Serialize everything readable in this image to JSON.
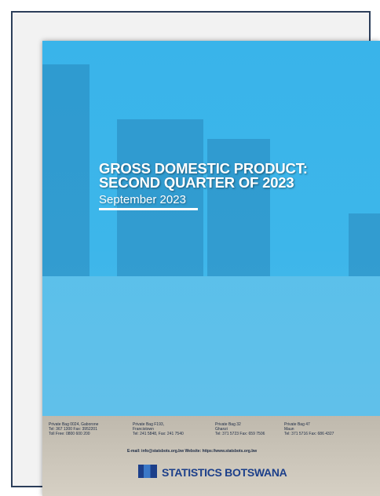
{
  "cover": {
    "title_lines": [
      "GROSS DOMESTIC PRODUCT:",
      "SECOND QUARTER OF 2023"
    ],
    "subtitle": "September 2023",
    "offices": [
      [
        "Private Bag 0024, Gaborone",
        "Tel: 367 1300 Fax: 3952201",
        "Toll Free: 0800 600 200"
      ],
      [
        "Private Bag F193,",
        "Francistown",
        "Tel: 241 5848, Fax: 241 7540"
      ],
      [
        "Private Bag 32",
        "Ghanzi",
        "Tel: 371 5723 Fax: 659 7506"
      ],
      [
        "Private Bag 47",
        "Maun",
        "Tel: 371 5716 Fax: 686 4327"
      ]
    ],
    "contact": "E-mail: info@statsbots.org.bw Website: https://www.statsbots.org.bw",
    "brand": "STATISTICS BOTSWANA"
  }
}
